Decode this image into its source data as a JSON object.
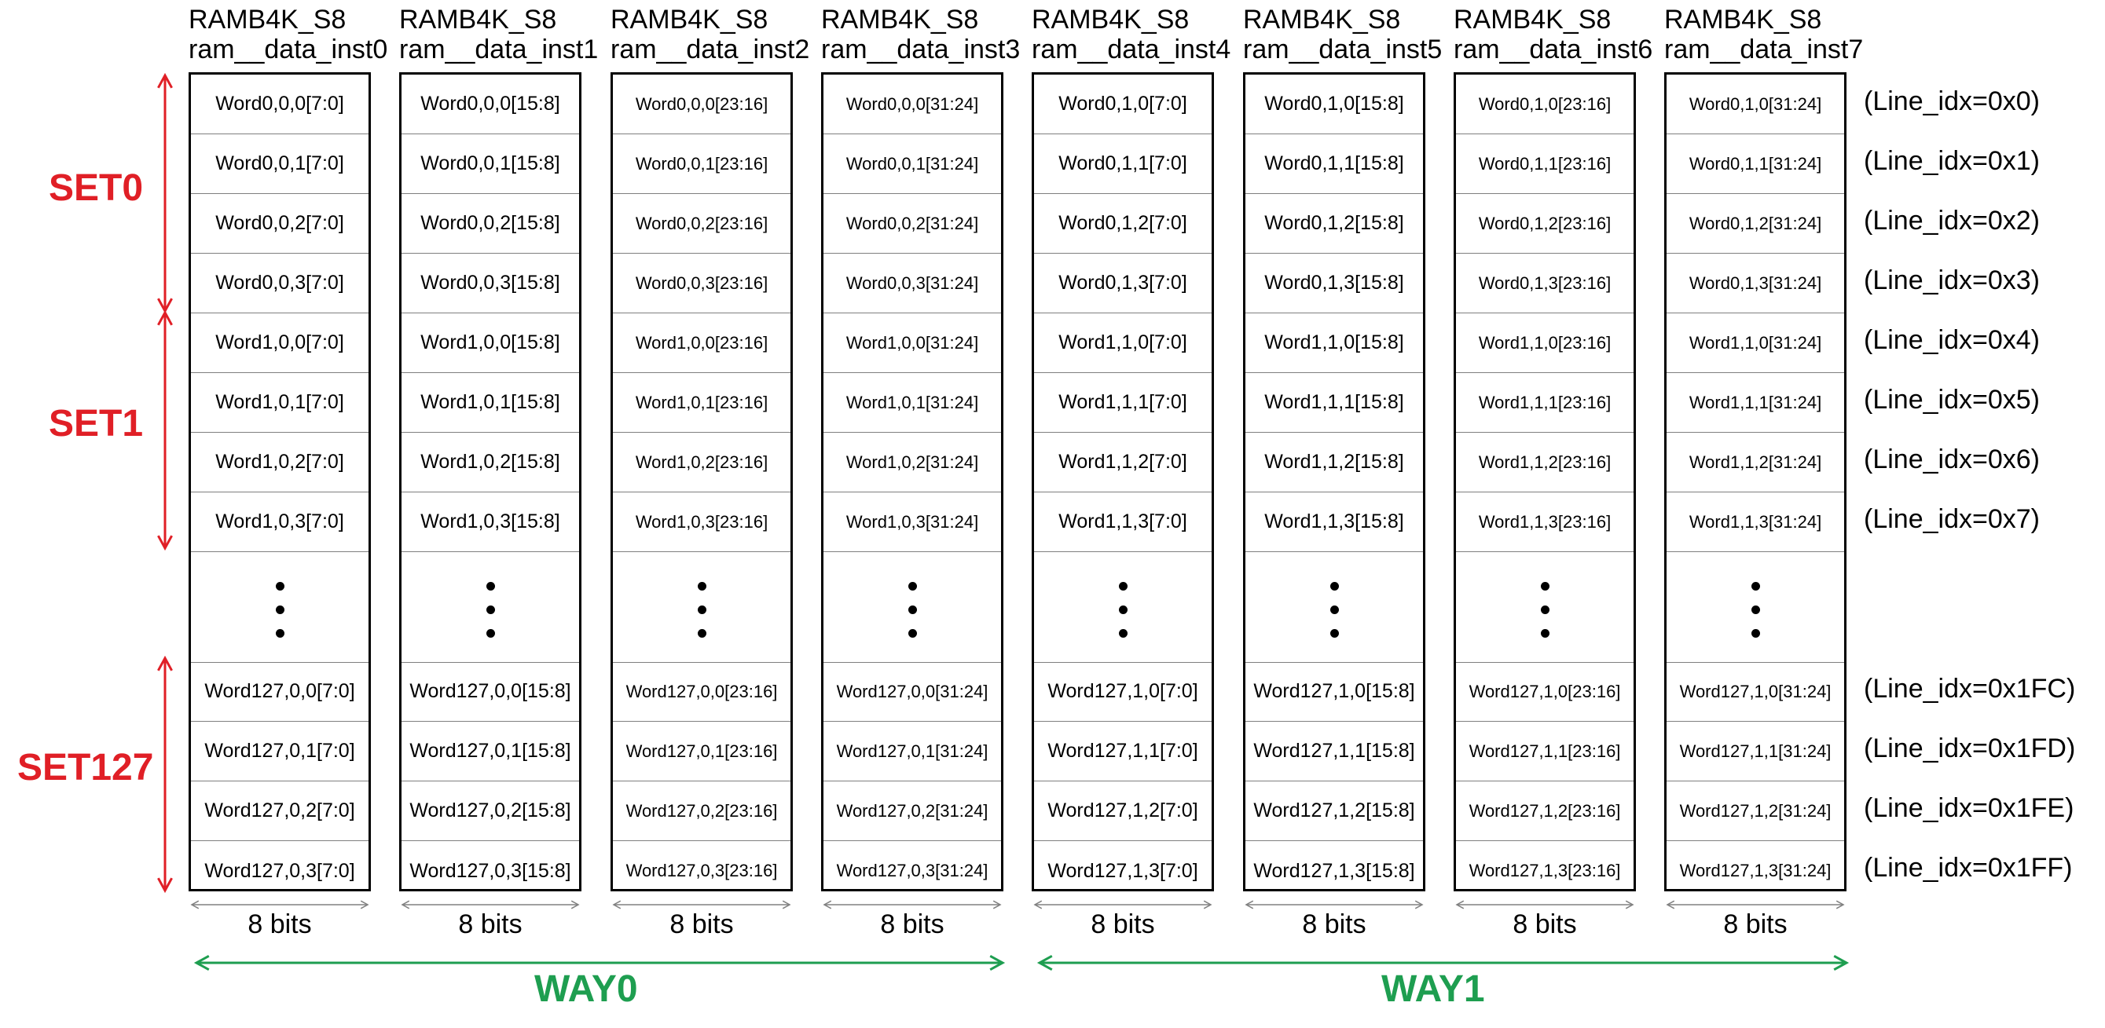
{
  "colors": {
    "set_arrow": "#e01f26",
    "way_arrow": "#1e9e50",
    "bits_arrow": "#808080",
    "grid_line": "#7f7f7f"
  },
  "columns": [
    {
      "type": "RAMB4K_S8",
      "inst": "ram__data_inst0",
      "bits": "8 bits",
      "top": [
        "Word0,0,0[7:0]",
        "Word0,0,1[7:0]",
        "Word0,0,2[7:0]",
        "Word0,0,3[7:0]",
        "Word1,0,0[7:0]",
        "Word1,0,1[7:0]",
        "Word1,0,2[7:0]",
        "Word1,0,3[7:0]"
      ],
      "bottom": [
        "Word127,0,0[7:0]",
        "Word127,0,1[7:0]",
        "Word127,0,2[7:0]",
        "Word127,0,3[7:0]"
      ]
    },
    {
      "type": "RAMB4K_S8",
      "inst": "ram__data_inst1",
      "bits": "8 bits",
      "top": [
        "Word0,0,0[15:8]",
        "Word0,0,1[15:8]",
        "Word0,0,2[15:8]",
        "Word0,0,3[15:8]",
        "Word1,0,0[15:8]",
        "Word1,0,1[15:8]",
        "Word1,0,2[15:8]",
        "Word1,0,3[15:8]"
      ],
      "bottom": [
        "Word127,0,0[15:8]",
        "Word127,0,1[15:8]",
        "Word127,0,2[15:8]",
        "Word127,0,3[15:8]"
      ]
    },
    {
      "type": "RAMB4K_S8",
      "inst": "ram__data_inst2",
      "bits": "8 bits",
      "top": [
        "Word0,0,0[23:16]",
        "Word0,0,1[23:16]",
        "Word0,0,2[23:16]",
        "Word0,0,3[23:16]",
        "Word1,0,0[23:16]",
        "Word1,0,1[23:16]",
        "Word1,0,2[23:16]",
        "Word1,0,3[23:16]"
      ],
      "bottom": [
        "Word127,0,0[23:16]",
        "Word127,0,1[23:16]",
        "Word127,0,2[23:16]",
        "Word127,0,3[23:16]"
      ]
    },
    {
      "type": "RAMB4K_S8",
      "inst": "ram__data_inst3",
      "bits": "8 bits",
      "top": [
        "Word0,0,0[31:24]",
        "Word0,0,1[31:24]",
        "Word0,0,2[31:24]",
        "Word0,0,3[31:24]",
        "Word1,0,0[31:24]",
        "Word1,0,1[31:24]",
        "Word1,0,2[31:24]",
        "Word1,0,3[31:24]"
      ],
      "bottom": [
        "Word127,0,0[31:24]",
        "Word127,0,1[31:24]",
        "Word127,0,2[31:24]",
        "Word127,0,3[31:24]"
      ]
    },
    {
      "type": "RAMB4K_S8",
      "inst": "ram__data_inst4",
      "bits": "8 bits",
      "top": [
        "Word0,1,0[7:0]",
        "Word0,1,1[7:0]",
        "Word0,1,2[7:0]",
        "Word0,1,3[7:0]",
        "Word1,1,0[7:0]",
        "Word1,1,1[7:0]",
        "Word1,1,2[7:0]",
        "Word1,1,3[7:0]"
      ],
      "bottom": [
        "Word127,1,0[7:0]",
        "Word127,1,1[7:0]",
        "Word127,1,2[7:0]",
        "Word127,1,3[7:0]"
      ]
    },
    {
      "type": "RAMB4K_S8",
      "inst": "ram__data_inst5",
      "bits": "8 bits",
      "top": [
        "Word0,1,0[15:8]",
        "Word0,1,1[15:8]",
        "Word0,1,2[15:8]",
        "Word0,1,3[15:8]",
        "Word1,1,0[15:8]",
        "Word1,1,1[15:8]",
        "Word1,1,2[15:8]",
        "Word1,1,3[15:8]"
      ],
      "bottom": [
        "Word127,1,0[15:8]",
        "Word127,1,1[15:8]",
        "Word127,1,2[15:8]",
        "Word127,1,3[15:8]"
      ]
    },
    {
      "type": "RAMB4K_S8",
      "inst": "ram__data_inst6",
      "bits": "8 bits",
      "top": [
        "Word0,1,0[23:16]",
        "Word0,1,1[23:16]",
        "Word0,1,2[23:16]",
        "Word0,1,3[23:16]",
        "Word1,1,0[23:16]",
        "Word1,1,1[23:16]",
        "Word1,1,2[23:16]",
        "Word1,1,3[23:16]"
      ],
      "bottom": [
        "Word127,1,0[23:16]",
        "Word127,1,1[23:16]",
        "Word127,1,2[23:16]",
        "Word127,1,3[23:16]"
      ]
    },
    {
      "type": "RAMB4K_S8",
      "inst": "ram__data_inst7",
      "bits": "8 bits",
      "top": [
        "Word0,1,0[31:24]",
        "Word0,1,1[31:24]",
        "Word0,1,2[31:24]",
        "Word0,1,3[31:24]",
        "Word1,1,0[31:24]",
        "Word1,1,1[31:24]",
        "Word1,1,2[31:24]",
        "Word1,1,3[31:24]"
      ],
      "bottom": [
        "Word127,1,0[31:24]",
        "Word127,1,1[31:24]",
        "Word127,1,2[31:24]",
        "Word127,1,3[31:24]"
      ]
    }
  ],
  "line_labels_top": [
    "(Line_idx=0x0)",
    "(Line_idx=0x1)",
    "(Line_idx=0x2)",
    "(Line_idx=0x3)",
    "(Line_idx=0x4)",
    "(Line_idx=0x5)",
    "(Line_idx=0x6)",
    "(Line_idx=0x7)"
  ],
  "line_labels_bottom": [
    "(Line_idx=0x1FC)",
    "(Line_idx=0x1FD)",
    "(Line_idx=0x1FE)",
    "(Line_idx=0x1FF)"
  ],
  "sets": [
    "SET0",
    "SET1",
    "SET127"
  ],
  "ways": [
    "WAY0",
    "WAY1"
  ]
}
